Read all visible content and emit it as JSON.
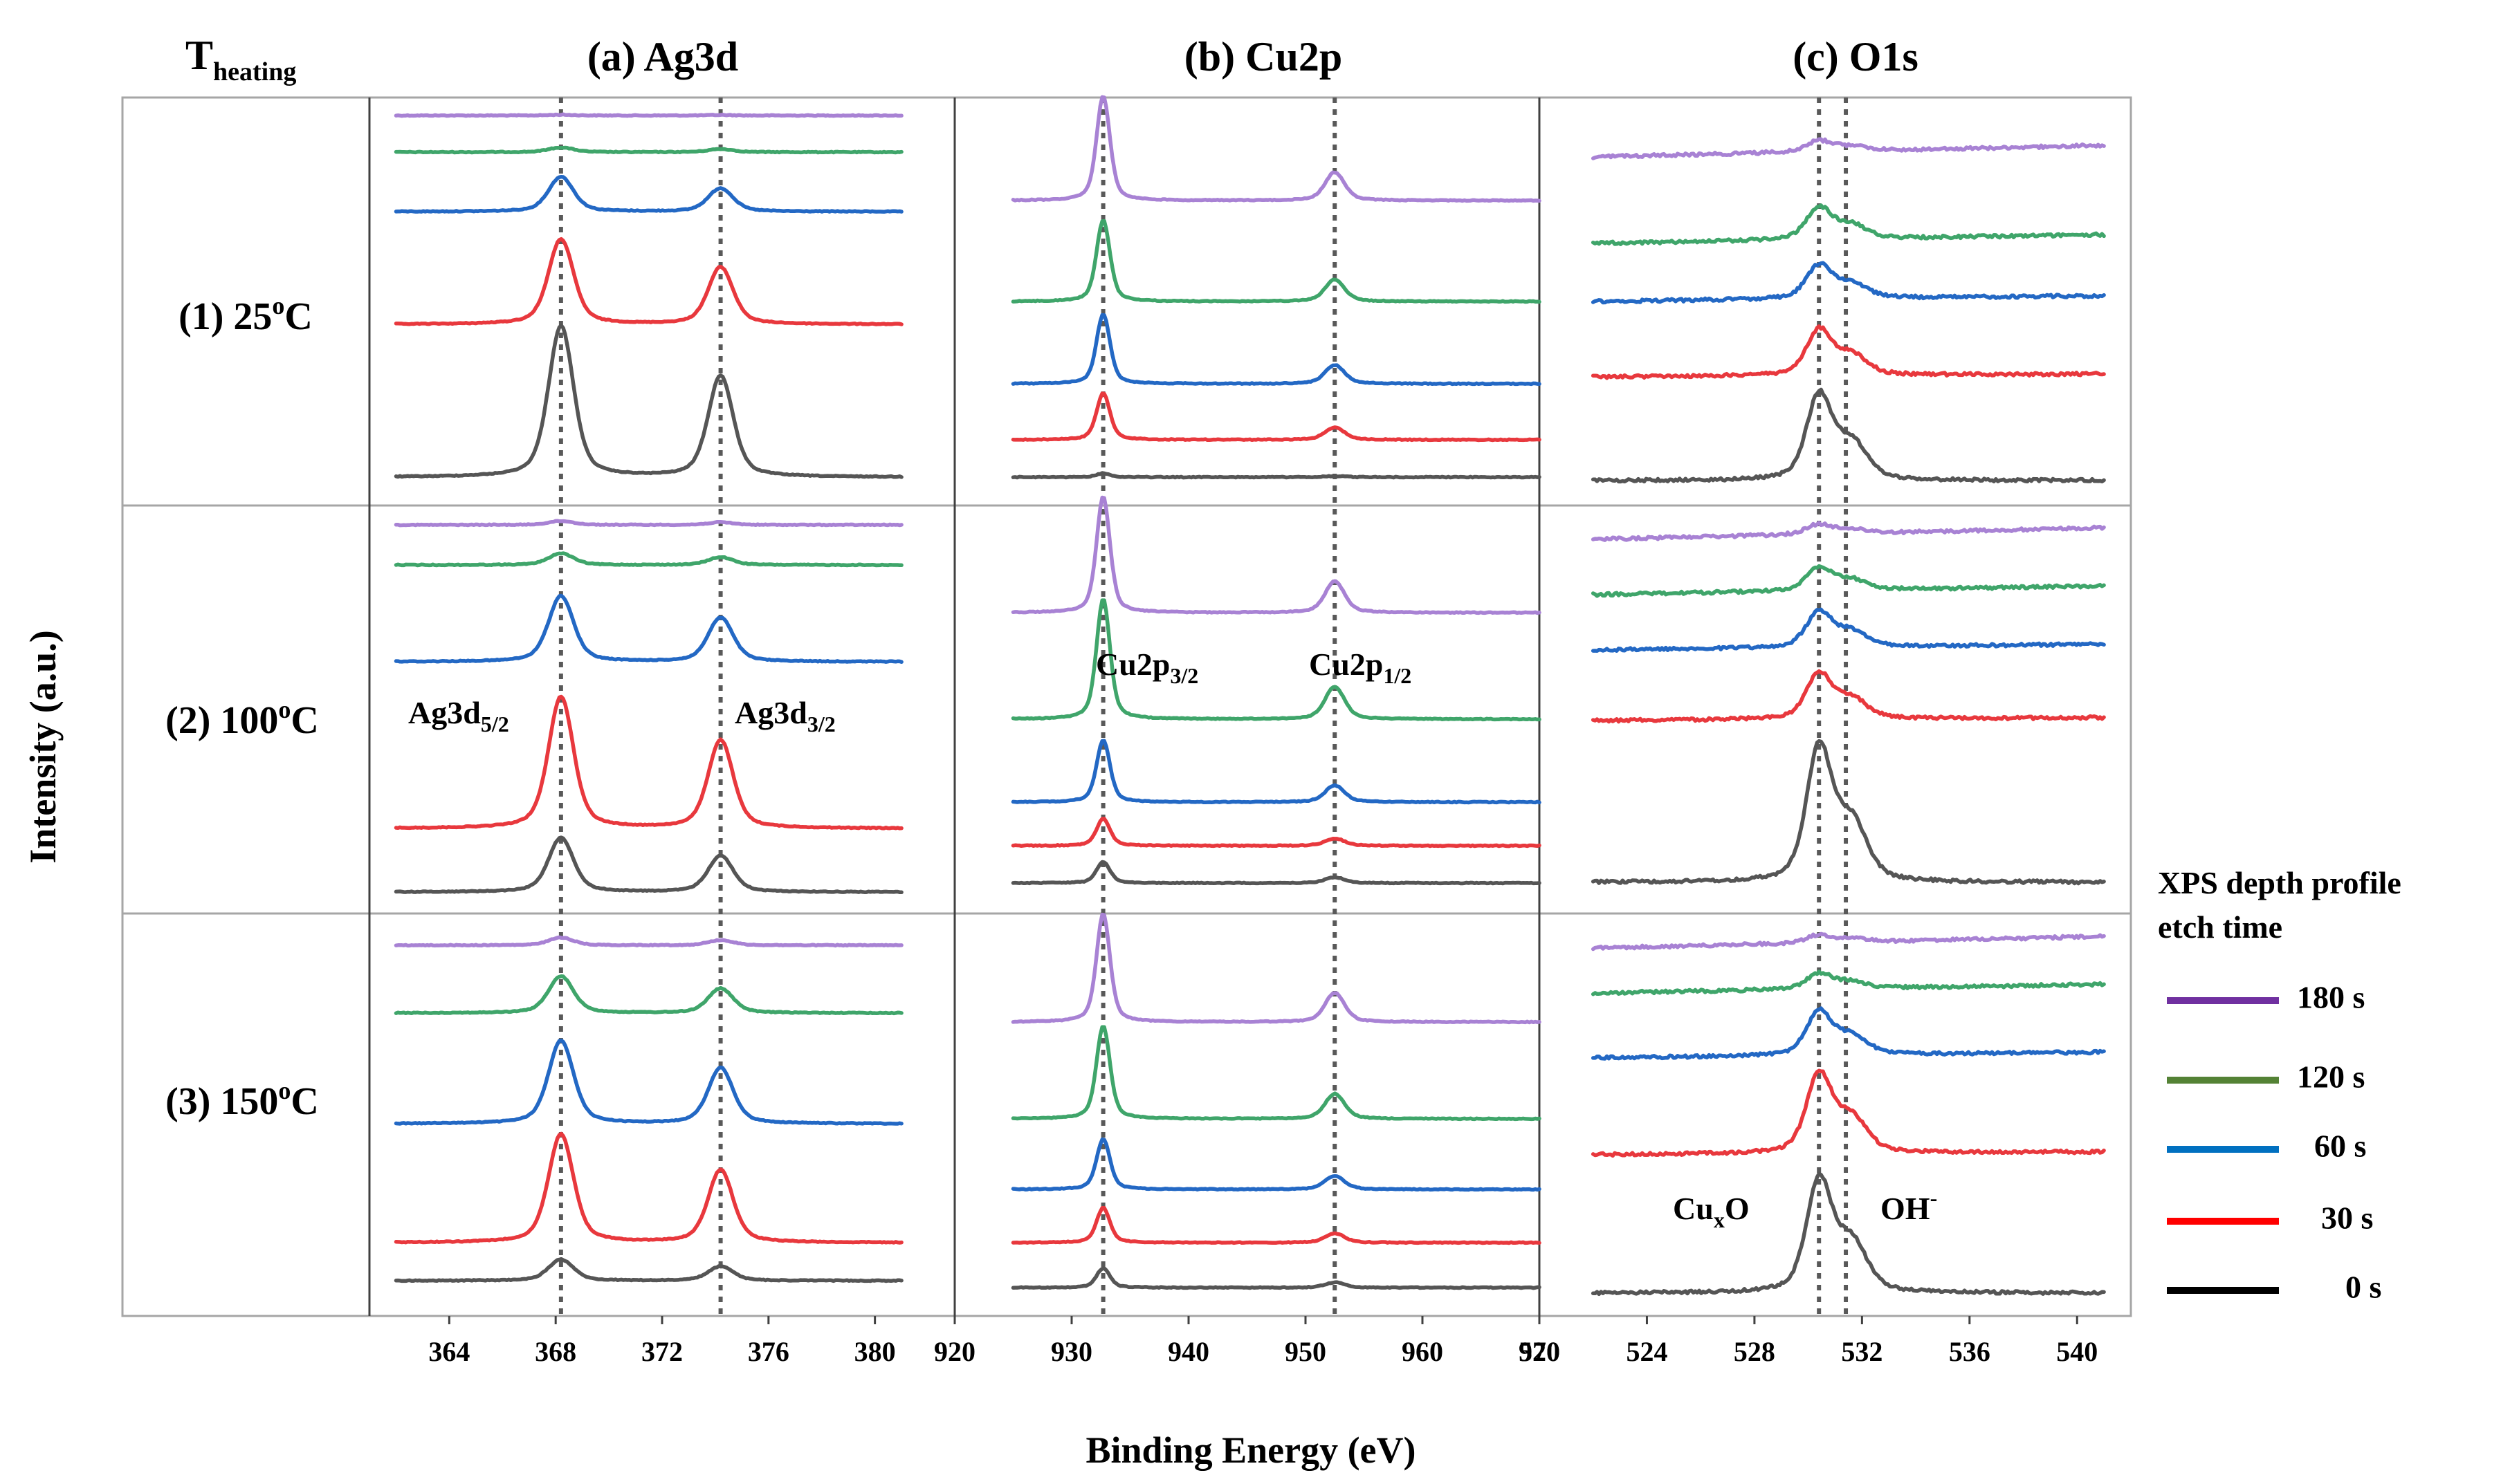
{
  "corner_label": {
    "main": "T",
    "sub": "heating"
  },
  "panels": [
    {
      "id": "ag3d",
      "title": "(a) Ag3d"
    },
    {
      "id": "cu2p",
      "title": "(b) Cu2p"
    },
    {
      "id": "o1s",
      "title": "(c) O1s"
    }
  ],
  "rows": [
    {
      "id": "25",
      "text": "(1) 25",
      "sup": "o",
      "unit": "C"
    },
    {
      "id": "100",
      "text": "(2) 100",
      "sup": "o",
      "unit": "C"
    },
    {
      "id": "150",
      "text": "(3) 150",
      "sup": "o",
      "unit": "C"
    }
  ],
  "axes": {
    "ylabel": "Intensity (a.u.)",
    "xlabel": "Binding Energy (eV)"
  },
  "peak_labels": {
    "ag_d52": {
      "main": "Ag3d",
      "sub": "5/2"
    },
    "ag_d32": {
      "main": "Ag3d",
      "sub": "3/2"
    },
    "cu_p32": {
      "main": "Cu2p",
      "sub": "3/2"
    },
    "cu_p12": {
      "main": "Cu2p",
      "sub": "1/2"
    },
    "cuxo": {
      "main": "Cu",
      "sub": "x",
      "rest": "O"
    },
    "oh": {
      "main": "OH",
      "sup": "-"
    }
  },
  "legend": {
    "title_line1": "XPS  depth profile",
    "title_line2": "etch time",
    "items": [
      {
        "label": "180 s",
        "color": "#7030a0"
      },
      {
        "label": "120 s",
        "color": "#548235"
      },
      {
        "label": "60 s",
        "color": "#0070c0"
      },
      {
        "label": "30 s",
        "color": "#ff0000"
      },
      {
        "label": "0 s",
        "color": "#000000"
      }
    ]
  },
  "chart_data": [
    {
      "type": "line",
      "panel": "(a) Ag3d",
      "xlim": [
        361,
        383
      ],
      "ticks": [
        364,
        368,
        372,
        376,
        380
      ],
      "reference_lines": [
        368.2,
        374.2
      ],
      "series_colors": {
        "0 s": "#555555",
        "30 s": "#e8383d",
        "60 s": "#2368c4",
        "120 s": "#3fa56a",
        "180 s": "#a882d4"
      },
      "x_range": [
        362,
        381
      ],
      "peaks": [
        {
          "center": 368.2,
          "width": 0.45,
          "weight": 1.0
        },
        {
          "center": 374.2,
          "width": 0.45,
          "weight": 0.67
        }
      ],
      "rows": [
        {
          "temperature": "25",
          "series": [
            {
              "name": "180 s",
              "amplitude": 0.002
            },
            {
              "name": "120 s",
              "amplitude": 0.012
            },
            {
              "name": "60 s",
              "amplitude": 0.09
            },
            {
              "name": "30 s",
              "amplitude": 0.22
            },
            {
              "name": "0 s",
              "amplitude": 0.39
            }
          ]
        },
        {
          "temperature": "100",
          "series": [
            {
              "name": "180 s",
              "amplitude": 0.01
            },
            {
              "name": "120 s",
              "amplitude": 0.03
            },
            {
              "name": "60 s",
              "amplitude": 0.17
            },
            {
              "name": "30 s",
              "amplitude": 0.34
            },
            {
              "name": "0 s",
              "amplitude": 0.14
            }
          ]
        },
        {
          "temperature": "150",
          "series": [
            {
              "name": "180 s",
              "amplitude": 0.02
            },
            {
              "name": "120 s",
              "amplitude": 0.095
            },
            {
              "name": "60 s",
              "amplitude": 0.215
            },
            {
              "name": "30 s",
              "amplitude": 0.28
            },
            {
              "name": "0 s",
              "amplitude": 0.055
            }
          ]
        }
      ]
    },
    {
      "type": "line",
      "panel": "(b) Cu2p",
      "xlim": [
        920,
        970
      ],
      "ticks": [
        920,
        930,
        940,
        950,
        960,
        970
      ],
      "reference_lines": [
        932.7,
        952.5
      ],
      "series_colors": {
        "0 s": "#555555",
        "30 s": "#e8383d",
        "60 s": "#2368c4",
        "120 s": "#3fa56a",
        "180 s": "#a882d4"
      },
      "x_range": [
        925,
        970
      ],
      "peaks": [
        {
          "center": 932.7,
          "width": 0.55,
          "weight": 1.0
        },
        {
          "center": 952.5,
          "width": 0.8,
          "weight": 0.27
        }
      ],
      "rows": [
        {
          "temperature": "25",
          "series": [
            {
              "name": "180 s",
              "amplitude": 0.27
            },
            {
              "name": "120 s",
              "amplitude": 0.21
            },
            {
              "name": "60 s",
              "amplitude": 0.18
            },
            {
              "name": "30 s",
              "amplitude": 0.12
            },
            {
              "name": "0 s",
              "amplitude": 0.01
            }
          ]
        },
        {
          "temperature": "100",
          "series": [
            {
              "name": "180 s",
              "amplitude": 0.3
            },
            {
              "name": "120 s",
              "amplitude": 0.31
            },
            {
              "name": "60 s",
              "amplitude": 0.16
            },
            {
              "name": "30 s",
              "amplitude": 0.07
            },
            {
              "name": "0 s",
              "amplitude": 0.055
            }
          ]
        },
        {
          "temperature": "150",
          "series": [
            {
              "name": "180 s",
              "amplitude": 0.28
            },
            {
              "name": "120 s",
              "amplitude": 0.24
            },
            {
              "name": "60 s",
              "amplitude": 0.13
            },
            {
              "name": "30 s",
              "amplitude": 0.09
            },
            {
              "name": "0 s",
              "amplitude": 0.05
            }
          ]
        }
      ]
    },
    {
      "type": "line",
      "panel": "(c) O1s",
      "xlim": [
        520,
        542
      ],
      "ticks": [
        520,
        524,
        528,
        532,
        536,
        540
      ],
      "reference_lines": [
        530.4,
        531.4
      ],
      "series_colors": {
        "0 s": "#555555",
        "30 s": "#e8383d",
        "60 s": "#2368c4",
        "120 s": "#3fa56a",
        "180 s": "#a882d4"
      },
      "x_range": [
        522,
        541
      ],
      "peaks": [
        {
          "center": 530.4,
          "width": 0.45,
          "weight": 1.0
        },
        {
          "center": 531.6,
          "width": 0.55,
          "weight": 0.45
        }
      ],
      "rows": [
        {
          "temperature": "25",
          "series": [
            {
              "name": "180 s",
              "amplitude": 0.028
            },
            {
              "name": "120 s",
              "amplitude": 0.08
            },
            {
              "name": "60 s",
              "amplitude": 0.085
            },
            {
              "name": "30 s",
              "amplitude": 0.115
            },
            {
              "name": "0 s",
              "amplitude": 0.215
            }
          ]
        },
        {
          "temperature": "100",
          "series": [
            {
              "name": "180 s",
              "amplitude": 0.025
            },
            {
              "name": "120 s",
              "amplitude": 0.06
            },
            {
              "name": "60 s",
              "amplitude": 0.09
            },
            {
              "name": "30 s",
              "amplitude": 0.115
            },
            {
              "name": "0 s",
              "amplitude": 0.34
            }
          ]
        },
        {
          "temperature": "150",
          "series": [
            {
              "name": "180 s",
              "amplitude": 0.02
            },
            {
              "name": "120 s",
              "amplitude": 0.04
            },
            {
              "name": "60 s",
              "amplitude": 0.11
            },
            {
              "name": "30 s",
              "amplitude": 0.2
            },
            {
              "name": "0 s",
              "amplitude": 0.285
            }
          ]
        }
      ]
    }
  ]
}
